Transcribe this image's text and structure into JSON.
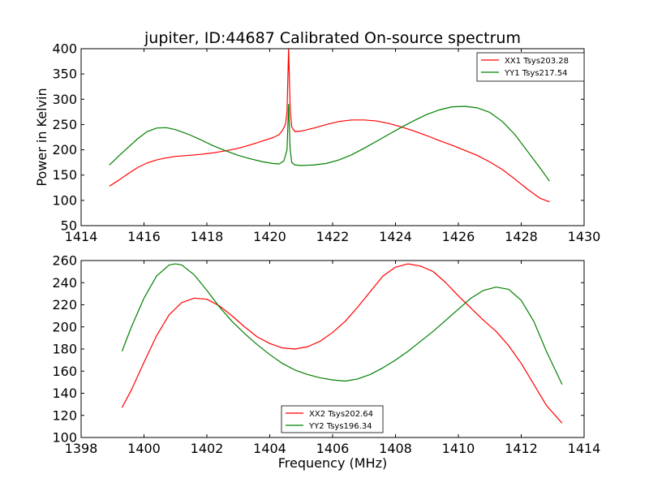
{
  "chart_data": [
    {
      "type": "line",
      "title": "jupiter, ID:44687 Calibrated On-source spectrum",
      "xlabel": "",
      "ylabel": "Power in Kelvin",
      "xlim": [
        1414,
        1430
      ],
      "ylim": [
        50,
        400
      ],
      "xticks": [
        1414,
        1416,
        1418,
        1420,
        1422,
        1424,
        1426,
        1428,
        1430
      ],
      "yticks": [
        50,
        100,
        150,
        200,
        250,
        300,
        350,
        400
      ],
      "legend_position": "top-right",
      "series": [
        {
          "name": "XX1 Tsys203.28",
          "color": "#ff0000",
          "points": [
            [
              1414.9,
              128
            ],
            [
              1415.2,
              140
            ],
            [
              1415.5,
              153
            ],
            [
              1415.8,
              165
            ],
            [
              1416.1,
              174
            ],
            [
              1416.4,
              180
            ],
            [
              1416.7,
              184
            ],
            [
              1417.0,
              187
            ],
            [
              1417.4,
              189
            ],
            [
              1417.8,
              191
            ],
            [
              1418.2,
              194
            ],
            [
              1418.6,
              198
            ],
            [
              1419.0,
              203
            ],
            [
              1419.4,
              210
            ],
            [
              1419.8,
              218
            ],
            [
              1420.1,
              224
            ],
            [
              1420.3,
              230
            ],
            [
              1420.4,
              238
            ],
            [
              1420.5,
              250
            ],
            [
              1420.55,
              275
            ],
            [
              1420.6,
              400
            ],
            [
              1420.65,
              280
            ],
            [
              1420.7,
              245
            ],
            [
              1420.8,
              236
            ],
            [
              1421.0,
              237
            ],
            [
              1421.4,
              243
            ],
            [
              1421.8,
              250
            ],
            [
              1422.2,
              256
            ],
            [
              1422.6,
              259
            ],
            [
              1423.0,
              259
            ],
            [
              1423.4,
              257
            ],
            [
              1423.8,
              252
            ],
            [
              1424.2,
              245
            ],
            [
              1424.6,
              237
            ],
            [
              1425.0,
              228
            ],
            [
              1425.4,
              218
            ],
            [
              1425.8,
              209
            ],
            [
              1426.2,
              199
            ],
            [
              1426.6,
              189
            ],
            [
              1427.0,
              176
            ],
            [
              1427.4,
              161
            ],
            [
              1427.8,
              142
            ],
            [
              1428.2,
              122
            ],
            [
              1428.6,
              104
            ],
            [
              1428.9,
              97
            ]
          ]
        },
        {
          "name": "YY1 Tsys217.54",
          "color": "#008000",
          "points": [
            [
              1414.9,
              170
            ],
            [
              1415.2,
              188
            ],
            [
              1415.5,
              205
            ],
            [
              1415.8,
              222
            ],
            [
              1416.1,
              236
            ],
            [
              1416.4,
              243
            ],
            [
              1416.7,
              244
            ],
            [
              1417.0,
              240
            ],
            [
              1417.4,
              231
            ],
            [
              1417.8,
              220
            ],
            [
              1418.2,
              208
            ],
            [
              1418.6,
              198
            ],
            [
              1419.0,
              189
            ],
            [
              1419.4,
              182
            ],
            [
              1419.8,
              176
            ],
            [
              1420.1,
              173
            ],
            [
              1420.3,
              172
            ],
            [
              1420.45,
              178
            ],
            [
              1420.55,
              200
            ],
            [
              1420.6,
              290
            ],
            [
              1420.65,
              200
            ],
            [
              1420.7,
              175
            ],
            [
              1420.8,
              170
            ],
            [
              1421.0,
              169
            ],
            [
              1421.4,
              170
            ],
            [
              1421.8,
              173
            ],
            [
              1422.2,
              180
            ],
            [
              1422.6,
              190
            ],
            [
              1423.0,
              203
            ],
            [
              1423.4,
              217
            ],
            [
              1423.8,
              231
            ],
            [
              1424.2,
              245
            ],
            [
              1424.6,
              258
            ],
            [
              1425.0,
              270
            ],
            [
              1425.4,
              279
            ],
            [
              1425.8,
              285
            ],
            [
              1426.2,
              286
            ],
            [
              1426.6,
              283
            ],
            [
              1427.0,
              274
            ],
            [
              1427.4,
              256
            ],
            [
              1427.8,
              230
            ],
            [
              1428.2,
              197
            ],
            [
              1428.6,
              164
            ],
            [
              1428.9,
              138
            ]
          ]
        }
      ]
    },
    {
      "type": "line",
      "title": "",
      "xlabel": "Frequency (MHz)",
      "ylabel": "",
      "xlim": [
        1398,
        1414
      ],
      "ylim": [
        100,
        260
      ],
      "xticks": [
        1398,
        1400,
        1402,
        1404,
        1406,
        1408,
        1410,
        1412,
        1414
      ],
      "yticks": [
        100,
        120,
        140,
        160,
        180,
        200,
        220,
        240,
        260
      ],
      "legend_position": "lower-center",
      "series": [
        {
          "name": "XX2 Tsys202.64",
          "color": "#ff0000",
          "points": [
            [
              1399.3,
              127
            ],
            [
              1399.6,
              143
            ],
            [
              1400.0,
              168
            ],
            [
              1400.4,
              192
            ],
            [
              1400.8,
              211
            ],
            [
              1401.2,
              222
            ],
            [
              1401.6,
              226
            ],
            [
              1402.0,
              225
            ],
            [
              1402.4,
              219
            ],
            [
              1402.8,
              210
            ],
            [
              1403.2,
              200
            ],
            [
              1403.6,
              191
            ],
            [
              1404.0,
              185
            ],
            [
              1404.4,
              181
            ],
            [
              1404.8,
              180
            ],
            [
              1405.2,
              182
            ],
            [
              1405.6,
              187
            ],
            [
              1406.0,
              195
            ],
            [
              1406.4,
              205
            ],
            [
              1406.8,
              218
            ],
            [
              1407.2,
              232
            ],
            [
              1407.6,
              246
            ],
            [
              1408.0,
              254
            ],
            [
              1408.4,
              257
            ],
            [
              1408.8,
              255
            ],
            [
              1409.2,
              250
            ],
            [
              1409.6,
              240
            ],
            [
              1410.0,
              228
            ],
            [
              1410.4,
              217
            ],
            [
              1410.8,
              206
            ],
            [
              1411.2,
              196
            ],
            [
              1411.6,
              183
            ],
            [
              1412.0,
              167
            ],
            [
              1412.4,
              148
            ],
            [
              1412.8,
              129
            ],
            [
              1413.3,
              113
            ]
          ]
        },
        {
          "name": "YY2 Tsys196.34",
          "color": "#008000",
          "points": [
            [
              1399.3,
              178
            ],
            [
              1399.6,
              200
            ],
            [
              1400.0,
              226
            ],
            [
              1400.4,
              246
            ],
            [
              1400.8,
              256
            ],
            [
              1401.0,
              257
            ],
            [
              1401.2,
              256
            ],
            [
              1401.6,
              247
            ],
            [
              1402.0,
              233
            ],
            [
              1402.4,
              218
            ],
            [
              1402.8,
              205
            ],
            [
              1403.2,
              194
            ],
            [
              1403.6,
              184
            ],
            [
              1404.0,
              175
            ],
            [
              1404.4,
              167
            ],
            [
              1404.8,
              161
            ],
            [
              1405.2,
              157
            ],
            [
              1405.6,
              154
            ],
            [
              1406.0,
              152
            ],
            [
              1406.4,
              151
            ],
            [
              1406.8,
              153
            ],
            [
              1407.2,
              157
            ],
            [
              1407.6,
              163
            ],
            [
              1408.0,
              170
            ],
            [
              1408.4,
              178
            ],
            [
              1408.8,
              187
            ],
            [
              1409.2,
              196
            ],
            [
              1409.6,
              206
            ],
            [
              1410.0,
              216
            ],
            [
              1410.4,
              226
            ],
            [
              1410.8,
              233
            ],
            [
              1411.2,
              236
            ],
            [
              1411.6,
              234
            ],
            [
              1412.0,
              224
            ],
            [
              1412.4,
              205
            ],
            [
              1412.8,
              178
            ],
            [
              1413.3,
              148
            ]
          ]
        }
      ]
    }
  ]
}
